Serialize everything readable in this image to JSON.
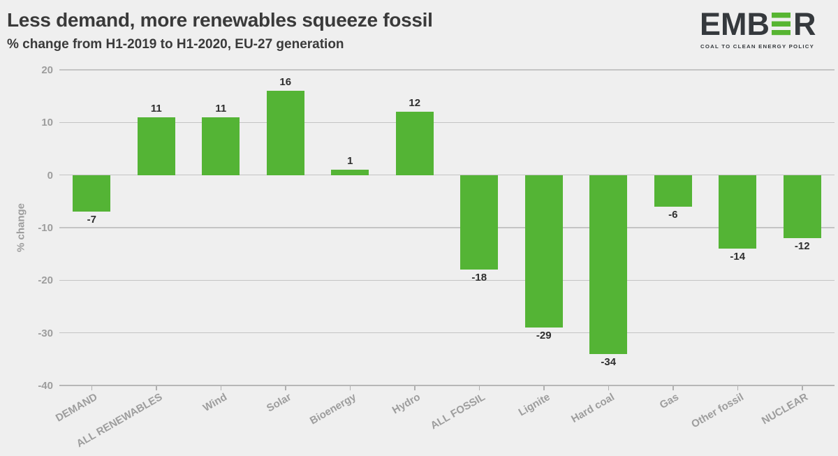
{
  "chart_data": {
    "type": "bar",
    "title": "Less demand, more renewables squeeze fossil",
    "subtitle": "% change from H1-2019 to H1-2020, EU-27 generation",
    "categories": [
      "DEMAND",
      "ALL RENEWABLES",
      "Wind",
      "Solar",
      "Bioenergy",
      "Hydro",
      "ALL FOSSIL",
      "Lignite",
      "Hard coal",
      "Gas",
      "Other fossil",
      "NUCLEAR"
    ],
    "values": [
      -7,
      11,
      11,
      16,
      1,
      12,
      -18,
      -29,
      -34,
      -6,
      -14,
      -12
    ],
    "xlabel": "",
    "ylabel": "% change",
    "ylim": [
      -40,
      20
    ],
    "yticks": [
      20,
      10,
      0,
      -10,
      -20,
      -30,
      -40
    ],
    "grid": true,
    "legend": "none",
    "bar_color": "#54b435",
    "background_color": "#efefef",
    "axis_label_color": "#9d9d9d",
    "value_label_color": "#2e2e2e",
    "gridline_color": "#c4c4c4"
  },
  "logo": {
    "brand_left": "EMB",
    "brand_right": "R",
    "tagline": "COAL TO CLEAN ENERGY POLICY",
    "dark_color": "#35393d",
    "green_color": "#57b532"
  }
}
